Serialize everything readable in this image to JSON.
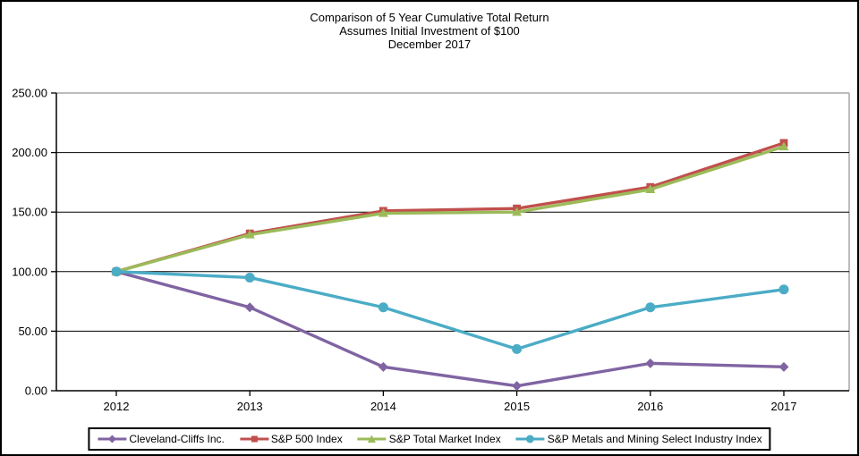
{
  "figure": {
    "title_line1": "Comparison of 5 Year Cumulative Total Return",
    "title_line2": "Assumes Initial Investment of $100",
    "title_line3": "December 2017"
  },
  "chart_data": {
    "type": "line",
    "title": "Comparison of 5 Year Cumulative Total Return",
    "subtitle": "Assumes Initial Investment of $100",
    "date_label": "December 2017",
    "xlabel": "",
    "ylabel": "",
    "categories": [
      "2012",
      "2013",
      "2014",
      "2015",
      "2016",
      "2017"
    ],
    "ylim": [
      0,
      250
    ],
    "ytick_labels": [
      "0.00",
      "50.00",
      "100.00",
      "150.00",
      "200.00",
      "250.00"
    ],
    "grid": true,
    "legend_position": "bottom",
    "series": [
      {
        "name": "Cleveland-Cliffs Inc.",
        "color": "#8064A2",
        "marker": "diamond",
        "values": [
          100,
          70,
          20,
          4,
          23,
          20
        ]
      },
      {
        "name": "S&P 500 Index",
        "color": "#C0504D",
        "marker": "square",
        "values": [
          100,
          132,
          151,
          153,
          171,
          208
        ]
      },
      {
        "name": "S&P Total Market Index",
        "color": "#9BBB59",
        "marker": "triangle",
        "values": [
          100,
          131,
          149,
          150,
          169,
          205
        ]
      },
      {
        "name": "S&P Metals and Mining Select Industry Index",
        "color": "#4BACC6",
        "marker": "circle",
        "values": [
          100,
          95,
          70,
          35,
          70,
          85
        ]
      }
    ],
    "colors": {
      "grid_line": "#000000",
      "plot_border": "#A6A6A6",
      "axis_line": "#000000",
      "text": "#000000"
    }
  }
}
